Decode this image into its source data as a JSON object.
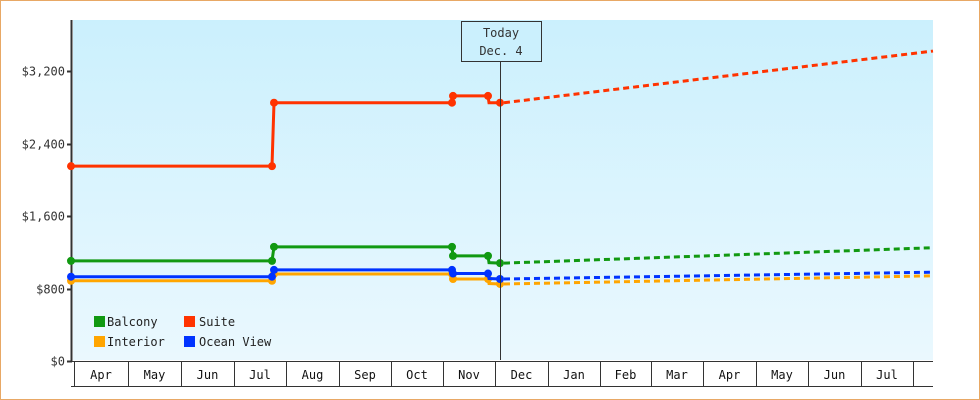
{
  "chart_data": {
    "type": "line",
    "title": "",
    "xlabel": "",
    "ylabel": "",
    "ylim": [
      0,
      3750
    ],
    "y_ticks": [
      "$0",
      "$800",
      "$1,600",
      "$2,400",
      "$3,200"
    ],
    "y_tick_values": [
      0,
      800,
      1600,
      2400,
      3200
    ],
    "x_tick_labels": [
      "Apr",
      "May",
      "Jun",
      "Jul",
      "Aug",
      "Sep",
      "Oct",
      "Nov",
      "Dec",
      "Jan",
      "Feb",
      "Mar",
      "Apr",
      "May",
      "Jun",
      "Jul"
    ],
    "grid": false,
    "legend_position": "lower-left",
    "annotation": {
      "line1": "Today",
      "line2": "Dec. 4"
    },
    "series": [
      {
        "name": "Balcony",
        "color": "#119911",
        "historical": [
          {
            "x": "Apr 1",
            "y": 1105
          },
          {
            "x": "Jul 24",
            "y": 1105
          },
          {
            "x": "Jul 25",
            "y": 1260
          },
          {
            "x": "Nov 4",
            "y": 1260
          },
          {
            "x": "Nov 5",
            "y": 1160
          },
          {
            "x": "Nov 25",
            "y": 1160
          },
          {
            "x": "Nov 26",
            "y": 1085
          },
          {
            "x": "Dec 4",
            "y": 1080
          }
        ],
        "forecast": [
          {
            "x": "Dec 4",
            "y": 1080
          },
          {
            "x": "Aug (end)",
            "y": 1250
          }
        ]
      },
      {
        "name": "Suite",
        "color": "#ff3300",
        "historical": [
          {
            "x": "Apr 1",
            "y": 2150
          },
          {
            "x": "Jul 24",
            "y": 2150
          },
          {
            "x": "Jul 25",
            "y": 2850
          },
          {
            "x": "Nov 4",
            "y": 2850
          },
          {
            "x": "Nov 5",
            "y": 2925
          },
          {
            "x": "Nov 25",
            "y": 2925
          },
          {
            "x": "Nov 26",
            "y": 2850
          },
          {
            "x": "Dec 4",
            "y": 2850
          }
        ],
        "forecast": [
          {
            "x": "Dec 4",
            "y": 2850
          },
          {
            "x": "Aug (end)",
            "y": 3420
          }
        ]
      },
      {
        "name": "Interior",
        "color": "#ffa500",
        "historical": [
          {
            "x": "Apr 1",
            "y": 885
          },
          {
            "x": "Jul 24",
            "y": 885
          },
          {
            "x": "Jul 25",
            "y": 960
          },
          {
            "x": "Nov 4",
            "y": 960
          },
          {
            "x": "Nov 5",
            "y": 905
          },
          {
            "x": "Nov 25",
            "y": 905
          },
          {
            "x": "Nov 26",
            "y": 855
          },
          {
            "x": "Dec 4",
            "y": 850
          }
        ],
        "forecast": [
          {
            "x": "Dec 4",
            "y": 850
          },
          {
            "x": "Aug (end)",
            "y": 940
          }
        ]
      },
      {
        "name": "Ocean View",
        "color": "#0033ff",
        "historical": [
          {
            "x": "Apr 1",
            "y": 930
          },
          {
            "x": "Jul 24",
            "y": 930
          },
          {
            "x": "Jul 25",
            "y": 1005
          },
          {
            "x": "Nov 4",
            "y": 1005
          },
          {
            "x": "Nov 5",
            "y": 965
          },
          {
            "x": "Nov 25",
            "y": 965
          },
          {
            "x": "Nov 26",
            "y": 910
          },
          {
            "x": "Dec 4",
            "y": 905
          }
        ],
        "forecast": [
          {
            "x": "Dec 4",
            "y": 905
          },
          {
            "x": "Aug (end)",
            "y": 980
          }
        ]
      }
    ]
  },
  "legend": [
    {
      "label": "Balcony",
      "color": "#119911"
    },
    {
      "label": "Suite",
      "color": "#ff3300"
    },
    {
      "label": "Interior",
      "color": "#ffa500"
    },
    {
      "label": "Ocean View",
      "color": "#0033ff"
    }
  ],
  "today": {
    "line1": "Today",
    "line2": "Dec. 4"
  }
}
